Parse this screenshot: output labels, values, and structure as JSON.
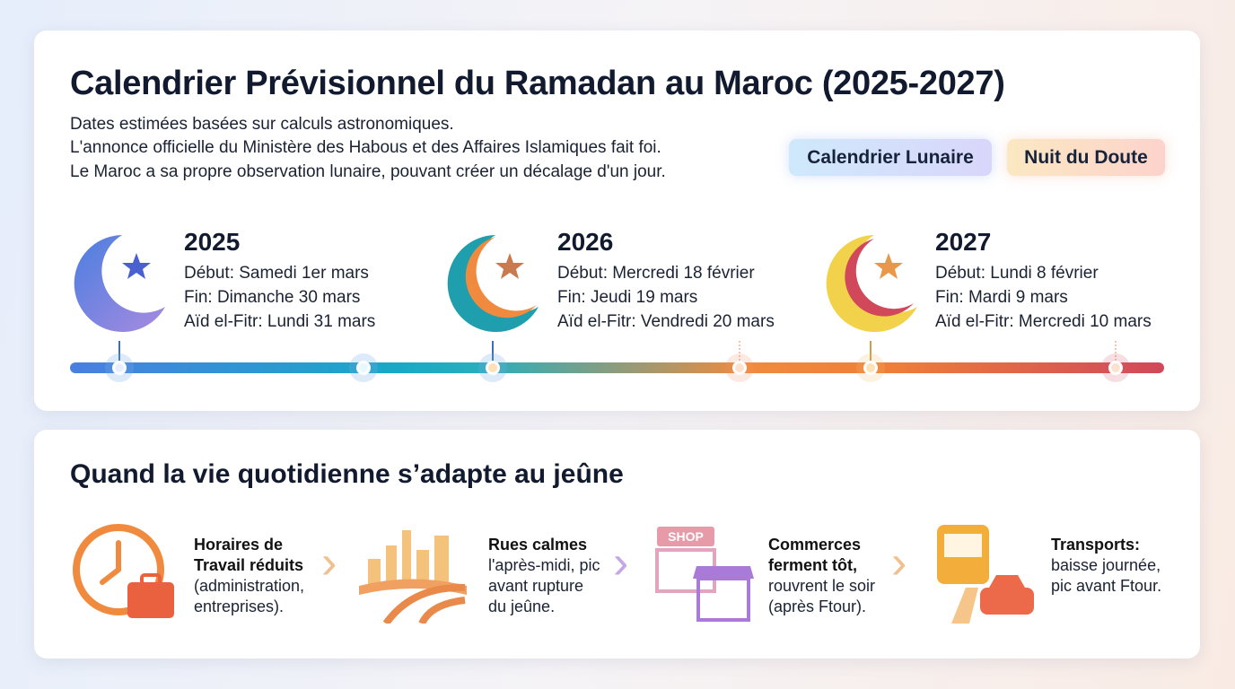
{
  "header": {
    "title": "Calendrier Prévisionnel du Ramadan au Maroc (2025-2027)",
    "notes": [
      "Dates estimées basées sur calculs astronomiques.",
      "L'annonce officielle du Ministère des Habous et des Affaires Islamiques fait foi.",
      "Le Maroc a sa propre observation lunaire, pouvant créer un décalage d'un jour."
    ]
  },
  "badges": [
    "Calendrier Lunaire",
    "Nuit du Doute"
  ],
  "years": [
    {
      "year": "2025",
      "debut": "Début: Samedi 1er mars",
      "fin": "Fin: Dimanche 30 mars",
      "aid": "Aïd el-Fitr: Lundi 31 mars",
      "icon": "crescent-star-icon"
    },
    {
      "year": "2026",
      "debut": "Début: Mercredi 18 février",
      "fin": "Fin: Jeudi 19 mars",
      "aid": "Aïd el-Fitr: Vendredi 20 mars",
      "icon": "crescent-star-icon"
    },
    {
      "year": "2027",
      "debut": "Début: Lundi 8 février",
      "fin": "Fin: Mardi 9 mars",
      "aid": "Aïd el-Fitr: Mercredi 10 mars",
      "icon": "crescent-star-icon"
    }
  ],
  "daily": {
    "title": "Quand la vie quotidienne s’adapte au jeûne",
    "items": [
      {
        "bold": [
          "Horaires de",
          "Travail réduits"
        ],
        "text": [
          "(administration,",
          "entreprises)."
        ],
        "icon": "clock-briefcase-icon"
      },
      {
        "bold": [
          "Rues calmes"
        ],
        "text": [
          "l'après-midi, pic",
          "avant rupture",
          "du jeûne."
        ],
        "icon": "city-road-icon"
      },
      {
        "bold": [
          "Commerces",
          "ferment tôt,"
        ],
        "text": [
          "rouvrent le soir",
          "(après Ftour)."
        ],
        "icon": "shop-icon",
        "shop_sign": "SHOP"
      },
      {
        "bold": [
          "Transports:"
        ],
        "text": [
          "baisse journée,",
          "pic avant Ftour."
        ],
        "icon": "bus-car-icon"
      }
    ]
  },
  "colors": {
    "blue": "#4a7fe0",
    "teal": "#18a9c6",
    "orange": "#f08a3e",
    "red": "#d0485a"
  }
}
